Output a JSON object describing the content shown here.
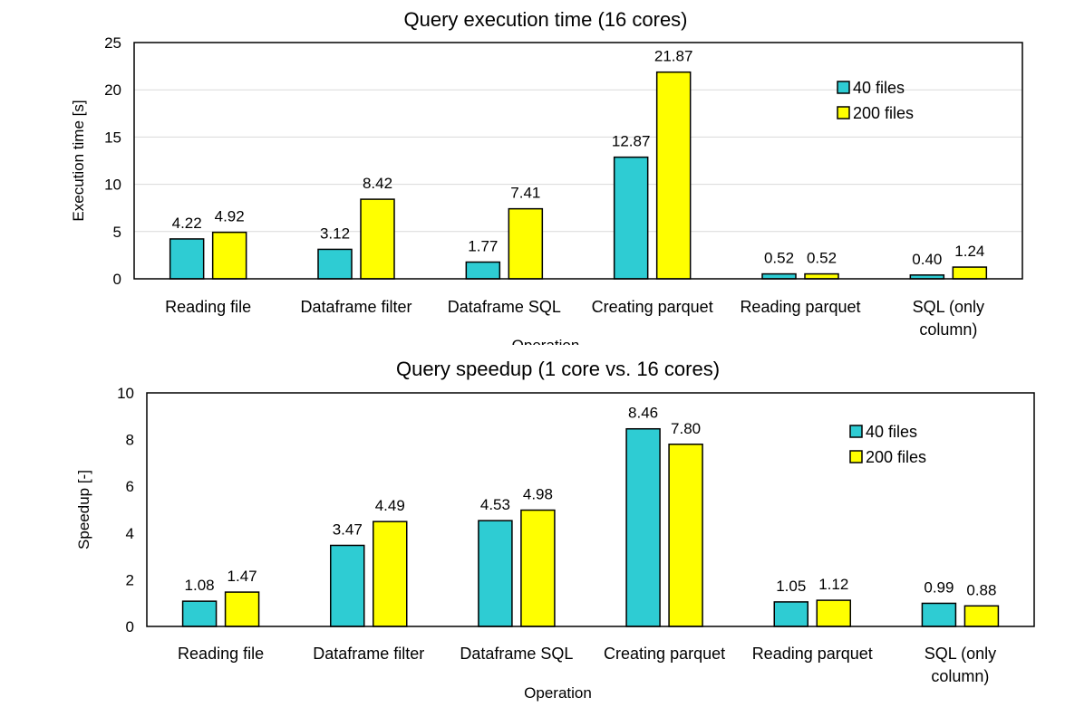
{
  "chart_data": [
    {
      "type": "bar",
      "title": "Query execution time (16 cores)",
      "xlabel": "Operation",
      "ylabel": "Execution time [s]",
      "ylim": [
        0,
        25
      ],
      "yticks": [
        0,
        5,
        10,
        15,
        20,
        25
      ],
      "categories": [
        "Reading file",
        "Dataframe filter",
        "Dataframe SQL",
        "Creating parquet",
        "Reading parquet",
        "SQL (only column)"
      ],
      "category_lines": [
        [
          "Reading file"
        ],
        [
          "Dataframe filter"
        ],
        [
          "Dataframe SQL"
        ],
        [
          "Creating parquet"
        ],
        [
          "Reading parquet"
        ],
        [
          "SQL (only",
          "column)"
        ]
      ],
      "series": [
        {
          "name": "40 files",
          "color": "#2ECCD3",
          "values": [
            4.22,
            3.12,
            1.77,
            12.87,
            0.52,
            0.4
          ],
          "labels": [
            "4.22",
            "3.12",
            "1.77",
            "12.87",
            "0.52",
            "0.40"
          ]
        },
        {
          "name": "200 files",
          "color": "#FFFF00",
          "values": [
            4.92,
            8.42,
            7.41,
            21.87,
            0.52,
            1.24
          ],
          "labels": [
            "4.92",
            "8.42",
            "7.41",
            "21.87",
            "0.52",
            "1.24"
          ]
        }
      ],
      "legend_position": "top-right",
      "grid": true
    },
    {
      "type": "bar",
      "title": "Query speedup (1 core vs. 16 cores)",
      "xlabel": "Operation",
      "ylabel": "Speedup [-]",
      "ylim": [
        0,
        10
      ],
      "yticks": [
        0,
        2,
        4,
        6,
        8,
        10
      ],
      "categories": [
        "Reading file",
        "Dataframe filter",
        "Dataframe SQL",
        "Creating parquet",
        "Reading parquet",
        "SQL (only column)"
      ],
      "category_lines": [
        [
          "Reading file"
        ],
        [
          "Dataframe filter"
        ],
        [
          "Dataframe SQL"
        ],
        [
          "Creating parquet"
        ],
        [
          "Reading parquet"
        ],
        [
          "SQL (only",
          "column)"
        ]
      ],
      "series": [
        {
          "name": "40 files",
          "color": "#2ECCD3",
          "values": [
            1.08,
            3.47,
            4.53,
            8.46,
            1.05,
            0.99
          ],
          "labels": [
            "1.08",
            "3.47",
            "4.53",
            "8.46",
            "1.05",
            "0.99"
          ]
        },
        {
          "name": "200 files",
          "color": "#FFFF00",
          "values": [
            1.47,
            4.49,
            4.98,
            7.8,
            1.12,
            0.88
          ],
          "labels": [
            "1.47",
            "4.49",
            "4.98",
            "7.80",
            "1.12",
            "0.88"
          ]
        }
      ],
      "legend_position": "top-right",
      "grid": false
    }
  ]
}
